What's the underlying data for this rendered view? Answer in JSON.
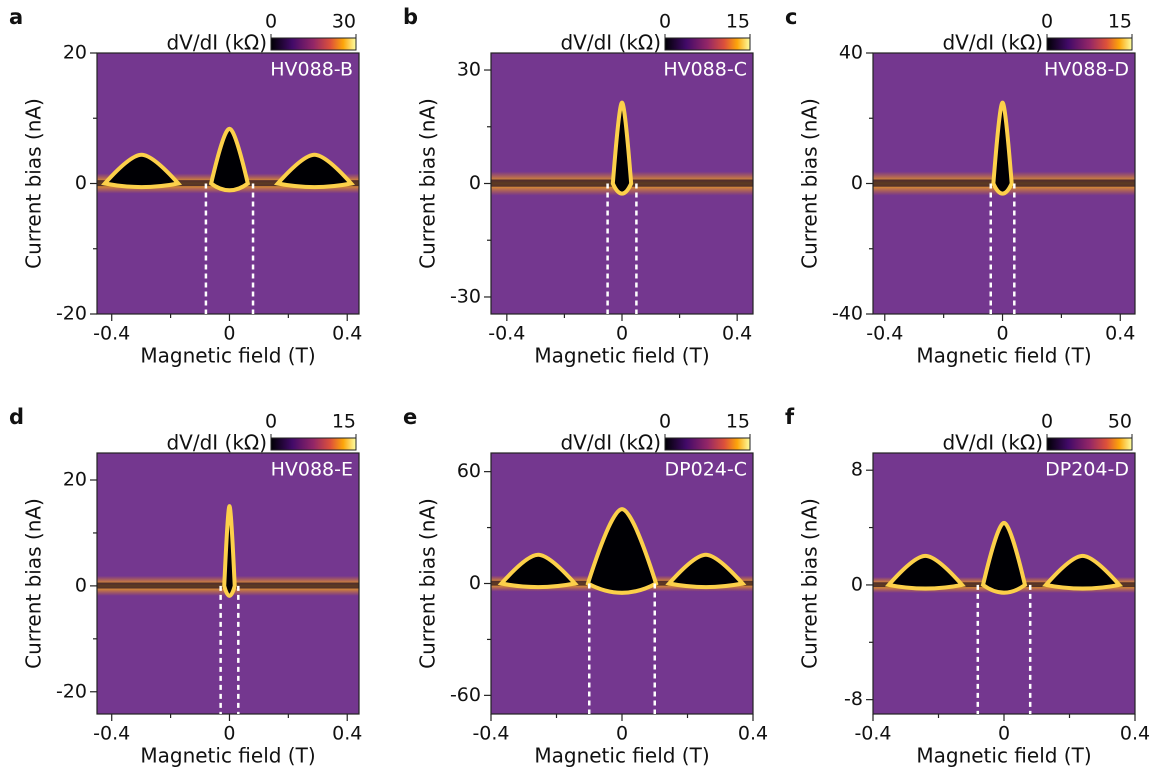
{
  "chart_data": [
    {
      "type": "heatmap",
      "panel": "a",
      "label": "HV088-B",
      "xlabel": "Magnetic field (T)",
      "ylabel": "Current bias (nA)",
      "colorbar_label": "dV/dI (kΩ)",
      "clim": [
        0,
        30
      ],
      "cticks": [
        0,
        30
      ],
      "xlim": [
        -0.45,
        0.44
      ],
      "xticks": [
        -0.4,
        0,
        0.4
      ],
      "xticks_minor": [
        -0.2,
        0.2
      ],
      "ylim": [
        -20,
        20
      ],
      "yticks": [
        -20,
        0,
        20
      ],
      "yticks_minor": [
        -10,
        10
      ],
      "dashed_lines": [
        -0.08,
        0.08
      ]
    },
    {
      "type": "heatmap",
      "panel": "b",
      "label": "HV088-C",
      "xlabel": "Magnetic field (T)",
      "ylabel": "Current bias (nA)",
      "colorbar_label": "dV/dI (kΩ)",
      "clim": [
        0,
        15
      ],
      "cticks": [
        0,
        15
      ],
      "xlim": [
        -0.455,
        0.455
      ],
      "xticks": [
        -0.4,
        0,
        0.4
      ],
      "xticks_minor": [
        -0.2,
        0.2
      ],
      "ylim": [
        -34.5,
        34.5
      ],
      "yticks": [
        -30,
        0,
        30
      ],
      "yticks_minor": [
        -15,
        15
      ],
      "dashed_lines": [
        -0.05,
        0.05
      ]
    },
    {
      "type": "heatmap",
      "panel": "c",
      "label": "HV088-D",
      "xlabel": "Magnetic field (T)",
      "ylabel": "Current bias (nA)",
      "colorbar_label": "dV/dI (kΩ)",
      "clim": [
        0,
        15
      ],
      "cticks": [
        0,
        15
      ],
      "xlim": [
        -0.44,
        0.45
      ],
      "xticks": [
        -0.4,
        0,
        0.4
      ],
      "xticks_minor": [
        -0.2,
        0.2
      ],
      "ylim": [
        -40,
        40
      ],
      "yticks": [
        -40,
        0,
        40
      ],
      "yticks_minor": [
        -20,
        20
      ],
      "dashed_lines": [
        -0.04,
        0.04
      ]
    },
    {
      "type": "heatmap",
      "panel": "d",
      "label": "HV088-E",
      "xlabel": "Magnetic field (T)",
      "ylabel": "Current bias (nA)",
      "colorbar_label": "dV/dI (kΩ)",
      "clim": [
        0,
        15
      ],
      "cticks": [
        0,
        15
      ],
      "xlim": [
        -0.45,
        0.44
      ],
      "xticks": [
        -0.4,
        0,
        0.4
      ],
      "xticks_minor": [
        -0.2,
        0.2
      ],
      "ylim": [
        -24.2,
        25.1
      ],
      "yticks": [
        -20,
        0,
        20
      ],
      "yticks_minor": [
        -10,
        10
      ],
      "dashed_lines": [
        -0.03,
        0.03
      ]
    },
    {
      "type": "heatmap",
      "panel": "e",
      "label": "DP024-C",
      "xlabel": "Magnetic field (T)",
      "ylabel": "Current bias (nA)",
      "colorbar_label": "dV/dI (kΩ)",
      "clim": [
        0,
        15
      ],
      "cticks": [
        0,
        15
      ],
      "xlim": [
        -0.4,
        0.4
      ],
      "xticks": [
        -0.4,
        0,
        0.4
      ],
      "xticks_minor": [
        -0.2,
        0.2
      ],
      "ylim": [
        -70,
        70
      ],
      "yticks": [
        -60,
        0,
        60
      ],
      "yticks_minor": [
        -30,
        30
      ],
      "dashed_lines": [
        -0.1,
        0.1
      ]
    },
    {
      "type": "heatmap",
      "panel": "f",
      "label": "DP204-D",
      "xlabel": "Magnetic field (T)",
      "ylabel": "Current bias (nA)",
      "colorbar_label": "dV/dI (kΩ)",
      "clim": [
        0,
        50
      ],
      "cticks": [
        0,
        50
      ],
      "xlim": [
        -0.4,
        0.4
      ],
      "xticks": [
        -0.4,
        0,
        0.4
      ],
      "xticks_minor": [
        -0.2,
        0.2
      ],
      "ylim": [
        -9,
        9.2
      ],
      "yticks": [
        -8,
        0,
        8
      ],
      "yticks_minor": [
        -4,
        4
      ],
      "dashed_lines": [
        -0.08,
        0.08
      ]
    }
  ]
}
